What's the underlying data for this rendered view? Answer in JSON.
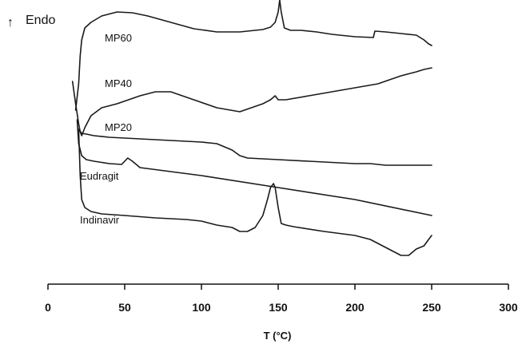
{
  "chart_data": {
    "type": "line",
    "title": "",
    "xlabel": "T (°C)",
    "ylabel": "Endo",
    "xlim": [
      0,
      300
    ],
    "xticks": [
      0,
      50,
      100,
      150,
      200,
      250,
      300
    ],
    "y_axis_note": "heat flow (arbitrary units, curves vertically offset)",
    "grid": false,
    "series": [
      {
        "name": "MP60",
        "x": [
          18,
          20,
          21,
          22,
          24,
          28,
          35,
          45,
          55,
          65,
          80,
          95,
          110,
          125,
          140,
          145,
          148,
          150,
          151,
          152,
          154,
          158,
          165,
          175,
          185,
          200,
          212,
          213,
          220,
          230,
          240,
          245,
          248,
          250
        ],
        "y": [
          282,
          315,
          350,
          370,
          385,
          392,
          400,
          405,
          404,
          400,
          392,
          384,
          380,
          380,
          383,
          386,
          392,
          405,
          420,
          405,
          385,
          382,
          382,
          380,
          377,
          374,
          373,
          381,
          380,
          378,
          376,
          370,
          365,
          363
        ]
      },
      {
        "name": "MP40",
        "x": [
          16,
          18,
          20,
          21,
          22,
          24,
          28,
          35,
          45,
          60,
          70,
          80,
          95,
          110,
          125,
          140,
          145,
          148,
          150,
          155,
          170,
          185,
          200,
          215,
          230,
          240,
          245,
          250
        ],
        "y": [
          318,
          290,
          265,
          255,
          250,
          260,
          275,
          285,
          290,
          300,
          305,
          305,
          295,
          285,
          280,
          290,
          295,
          300,
          295,
          295,
          300,
          305,
          310,
          315,
          325,
          330,
          333,
          335
        ]
      },
      {
        "name": "MP20",
        "x": [
          20,
          22,
          25,
          30,
          40,
          60,
          80,
          100,
          110,
          120,
          125,
          130,
          150,
          170,
          190,
          200,
          210,
          220,
          240,
          250
        ],
        "y": [
          258,
          253,
          252,
          250,
          248,
          246,
          244,
          242,
          240,
          232,
          225,
          222,
          220,
          218,
          216,
          215,
          215,
          213,
          213,
          213
        ]
      },
      {
        "name": "Eudragit",
        "x": [
          19,
          20,
          22,
          25,
          30,
          40,
          48,
          50,
          52,
          55,
          60,
          80,
          100,
          150,
          200,
          250
        ],
        "y": [
          270,
          240,
          225,
          220,
          218,
          215,
          214,
          218,
          222,
          218,
          210,
          205,
          200,
          185,
          170,
          150
        ]
      },
      {
        "name": "Indinavir",
        "x": [
          20,
          21,
          22,
          24,
          28,
          35,
          50,
          70,
          90,
          100,
          110,
          120,
          125,
          130,
          135,
          140,
          143,
          145,
          147,
          148,
          150,
          152,
          155,
          160,
          180,
          200,
          210,
          220,
          225,
          230,
          235,
          240,
          245,
          248,
          250
        ],
        "y": [
          258,
          200,
          170,
          160,
          155,
          152,
          150,
          147,
          145,
          143,
          138,
          135,
          130,
          130,
          135,
          150,
          170,
          185,
          190,
          185,
          160,
          140,
          138,
          136,
          130,
          125,
          120,
          110,
          105,
          100,
          100,
          108,
          112,
          120,
          125
        ]
      }
    ],
    "labels": [
      "MP60",
      "MP40",
      "MP20",
      "Eudragit",
      "Indinavir"
    ]
  },
  "endo_label": "Endo",
  "endo_arrow": "↑",
  "xtick_labels": [
    "0",
    "50",
    "100",
    "150",
    "200",
    "250",
    "300"
  ],
  "axis_title": "T (°C)"
}
